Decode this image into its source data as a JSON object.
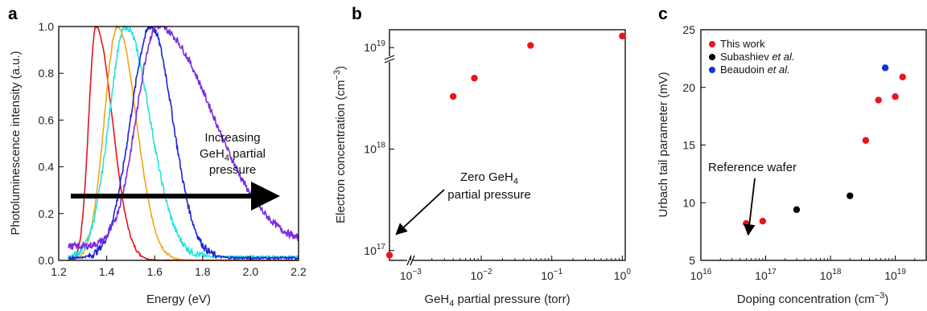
{
  "chart_data": [
    {
      "type": "line",
      "panel_label": "a",
      "xlabel": "Energy (eV)",
      "ylabel": "Photoluminescence intensity (a.u.)",
      "xlim": [
        1.2,
        2.2
      ],
      "ylim": [
        0,
        1.0
      ],
      "xticks": [
        "1.2",
        "1.4",
        "1.6",
        "1.8",
        "2.0",
        "2.2"
      ],
      "yticks": [
        "0.0",
        "0.2",
        "0.4",
        "0.6",
        "0.8",
        "1.0"
      ],
      "series": [
        {
          "color": "#e8151b",
          "peak": 1.355,
          "sigmaL": 0.03,
          "sigmaR": 0.068,
          "floor": 0.0
        },
        {
          "color": "#f5a313",
          "peak": 1.445,
          "sigmaL": 0.055,
          "sigmaR": 0.078,
          "floor": 0.0
        },
        {
          "color": "#26e3e0",
          "peak": 1.48,
          "sigmaL": 0.07,
          "sigmaR": 0.1,
          "floor": 0.015
        },
        {
          "color": "#1b23d6",
          "peak": 1.585,
          "sigmaL": 0.085,
          "sigmaR": 0.09,
          "floor": 0.01
        },
        {
          "color": "#7b2be0",
          "peak": 1.61,
          "sigmaL": 0.085,
          "sigmaR": 0.23,
          "floor": 0.06
        }
      ],
      "annotation": {
        "line1": "Increasing",
        "line2_pre": "GeH",
        "line2_sub": "4",
        "line2_post": " partial",
        "line3": "pressure"
      }
    },
    {
      "type": "scatter",
      "panel_label": "b",
      "xlabel_pre": "GeH",
      "xlabel_sub": "4",
      "xlabel_post": " partial pressure (torr)",
      "ylabel_pre": "Electron concentration (cm",
      "ylabel_sup": "−3",
      "ylabel_post": ")",
      "xscale": "log",
      "yscale": "log",
      "xlim": [
        0.0005,
        1.1
      ],
      "ylim": [
        8e+16,
        1.5e+19
      ],
      "xticks": [
        {
          "base": "10",
          "exp": "−3"
        },
        {
          "base": "10",
          "exp": "−2"
        },
        {
          "base": "10",
          "exp": "−1"
        },
        {
          "base": "10",
          "exp": "0"
        }
      ],
      "yticks": [
        {
          "base": "10",
          "exp": "17"
        },
        {
          "base": "10",
          "exp": "18"
        },
        {
          "base": "10",
          "exp": "19"
        }
      ],
      "color": "#e8151b",
      "points": [
        {
          "x": 0.0005,
          "y": 9e+16
        },
        {
          "x": 0.004,
          "y": 3.3e+18
        },
        {
          "x": 0.008,
          "y": 5e+18
        },
        {
          "x": 0.05,
          "y": 1.05e+19
        },
        {
          "x": 1.0,
          "y": 1.3e+19
        }
      ],
      "annotation": {
        "line1_pre": "Zero GeH",
        "line1_sub": "4",
        "line2": "partial pressure"
      }
    },
    {
      "type": "scatter",
      "panel_label": "c",
      "xlabel_pre": "Doping concentration (cm",
      "xlabel_sup": "−3",
      "xlabel_post": ")",
      "ylabel": "Urbach tail parameter (mV)",
      "xscale": "log",
      "xlim": [
        1e+16,
        3e+19
      ],
      "ylim": [
        5,
        25
      ],
      "xticks": [
        {
          "base": "10",
          "exp": "16"
        },
        {
          "base": "10",
          "exp": "17"
        },
        {
          "base": "10",
          "exp": "18"
        },
        {
          "base": "10",
          "exp": "19"
        }
      ],
      "yticks": [
        "5",
        "10",
        "15",
        "20",
        "25"
      ],
      "legend_position": "top-left",
      "series": [
        {
          "name": "This work",
          "name_italic": "",
          "color": "#e8151b",
          "points": [
            {
              "x": 5e+16,
              "y": 8.2
            },
            {
              "x": 9e+16,
              "y": 8.4
            },
            {
              "x": 3.5e+18,
              "y": 15.4
            },
            {
              "x": 5.5e+18,
              "y": 18.9
            },
            {
              "x": 1e+19,
              "y": 19.2
            },
            {
              "x": 1.3e+19,
              "y": 20.9
            }
          ]
        },
        {
          "name": "Subashiev ",
          "name_italic": "et al.",
          "color": "#000000",
          "points": [
            {
              "x": 3e+17,
              "y": 9.4
            },
            {
              "x": 2e+18,
              "y": 10.6
            }
          ]
        },
        {
          "name": "Beaudoin ",
          "name_italic": "et al.",
          "color": "#1230e8",
          "points": [
            {
              "x": 7e+18,
              "y": 21.7
            }
          ]
        }
      ],
      "annotation": {
        "text": "Reference wafer"
      }
    }
  ]
}
